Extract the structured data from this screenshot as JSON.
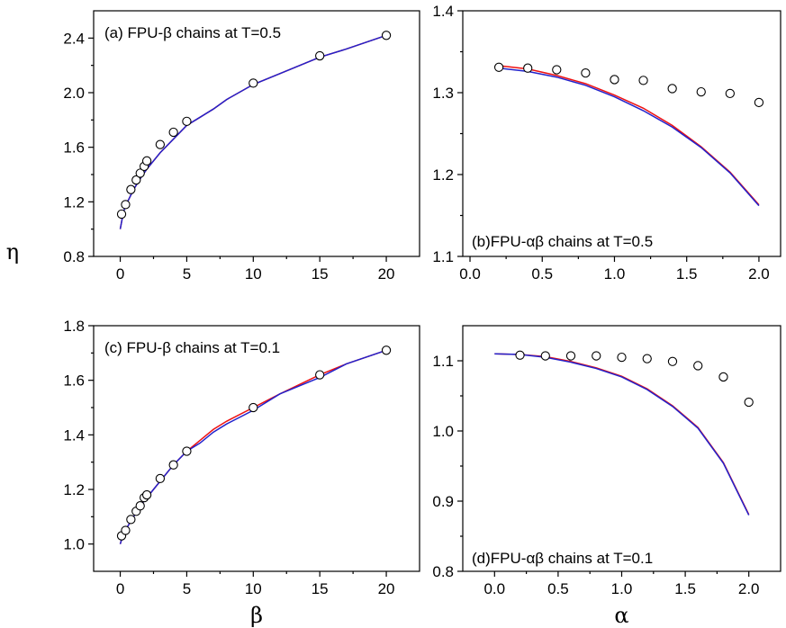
{
  "figure": {
    "shared_ylabel": "η",
    "colors": {
      "red": "#ee1111",
      "blue": "#2222cc",
      "markers": "#000000"
    }
  },
  "chart_data": [
    {
      "id": "a",
      "type": "line",
      "title": "(a) FPU-β chains at T=0.5",
      "xlabel": "",
      "ylabel": "η",
      "xlim": [
        -2,
        22.5
      ],
      "ylim": [
        0.8,
        2.6
      ],
      "xticks": [
        0,
        5,
        10,
        15,
        20
      ],
      "xtick_labels": [
        "0",
        "5",
        "10",
        "15",
        "20"
      ],
      "yticks": [
        0.8,
        1.2,
        1.6,
        2.0,
        2.4
      ],
      "ytick_labels": [
        "0.8",
        "1.2",
        "1.6",
        "2.0",
        "2.4"
      ],
      "series": [
        {
          "style": "line",
          "color": "#ee1111",
          "x": [
            0,
            0.25,
            0.5,
            1,
            1.5,
            2,
            3,
            4,
            5,
            6,
            7,
            8,
            10,
            12,
            15,
            17,
            20
          ],
          "y": [
            1.0,
            1.13,
            1.19,
            1.29,
            1.37,
            1.44,
            1.56,
            1.66,
            1.76,
            1.82,
            1.88,
            1.95,
            2.06,
            2.14,
            2.26,
            2.32,
            2.42
          ]
        },
        {
          "style": "line",
          "color": "#2222cc",
          "x": [
            0,
            0.25,
            0.5,
            1,
            1.5,
            2,
            3,
            4,
            5,
            6,
            7,
            8,
            10,
            12,
            15,
            17,
            20
          ],
          "y": [
            1.0,
            1.13,
            1.19,
            1.29,
            1.37,
            1.44,
            1.56,
            1.66,
            1.76,
            1.82,
            1.88,
            1.95,
            2.06,
            2.14,
            2.26,
            2.32,
            2.42
          ]
        },
        {
          "style": "marker",
          "x": [
            0.1,
            0.4,
            0.8,
            1.2,
            1.5,
            1.8,
            2.0,
            3.0,
            4.0,
            5.0,
            10.0,
            15.0,
            20.0
          ],
          "y": [
            1.11,
            1.18,
            1.29,
            1.36,
            1.41,
            1.46,
            1.5,
            1.62,
            1.71,
            1.79,
            2.07,
            2.27,
            2.42
          ]
        }
      ]
    },
    {
      "id": "b",
      "type": "line",
      "title": "(b)FPU-αβ chains at T=0.5",
      "xlabel": "",
      "ylabel": "η",
      "xlim": [
        -0.05,
        2.15
      ],
      "ylim": [
        1.1,
        1.4
      ],
      "xticks": [
        0.0,
        0.5,
        1.0,
        1.5,
        2.0
      ],
      "xtick_labels": [
        "0.0",
        "0.5",
        "1.0",
        "1.5",
        "2.0"
      ],
      "yticks": [
        1.1,
        1.2,
        1.3,
        1.4
      ],
      "ytick_labels": [
        "1.1",
        "1.2",
        "1.3",
        "1.4"
      ],
      "series": [
        {
          "style": "line",
          "color": "#ee1111",
          "x": [
            0.2,
            0.4,
            0.6,
            0.8,
            1.0,
            1.2,
            1.4,
            1.6,
            1.8,
            2.0
          ],
          "y": [
            1.333,
            1.329,
            1.321,
            1.311,
            1.297,
            1.281,
            1.26,
            1.234,
            1.203,
            1.163
          ]
        },
        {
          "style": "line",
          "color": "#2222cc",
          "x": [
            0.2,
            0.4,
            0.6,
            0.8,
            1.0,
            1.2,
            1.4,
            1.6,
            1.8,
            2.0
          ],
          "y": [
            1.33,
            1.326,
            1.319,
            1.309,
            1.295,
            1.278,
            1.258,
            1.233,
            1.202,
            1.162
          ]
        },
        {
          "style": "marker",
          "x": [
            0.2,
            0.4,
            0.6,
            0.8,
            1.0,
            1.2,
            1.4,
            1.6,
            1.8,
            2.0
          ],
          "y": [
            1.331,
            1.33,
            1.328,
            1.324,
            1.316,
            1.315,
            1.305,
            1.301,
            1.299,
            1.288
          ]
        }
      ]
    },
    {
      "id": "c",
      "type": "line",
      "title": "(c) FPU-β chains at T=0.1",
      "xlabel": "β",
      "ylabel": "η",
      "xlim": [
        -2,
        22.5
      ],
      "ylim": [
        0.9,
        1.8
      ],
      "xticks": [
        0,
        5,
        10,
        15,
        20
      ],
      "xtick_labels": [
        "0",
        "5",
        "10",
        "15",
        "20"
      ],
      "yticks": [
        1.0,
        1.2,
        1.4,
        1.6,
        1.8
      ],
      "ytick_labels": [
        "1.0",
        "1.2",
        "1.4",
        "1.6",
        "1.8"
      ],
      "series": [
        {
          "style": "line",
          "color": "#ee1111",
          "x": [
            0,
            0.25,
            0.5,
            1,
            1.5,
            2,
            3,
            4,
            5,
            6,
            7,
            8,
            10,
            12,
            15,
            17,
            20
          ],
          "y": [
            1.0,
            1.04,
            1.06,
            1.1,
            1.14,
            1.17,
            1.23,
            1.29,
            1.34,
            1.38,
            1.42,
            1.45,
            1.5,
            1.55,
            1.62,
            1.66,
            1.71
          ]
        },
        {
          "style": "line",
          "color": "#2222cc",
          "x": [
            0,
            0.25,
            0.5,
            1,
            1.5,
            2,
            3,
            4,
            5,
            6,
            7,
            8,
            10,
            12,
            15,
            17,
            20
          ],
          "y": [
            1.0,
            1.04,
            1.06,
            1.1,
            1.14,
            1.17,
            1.23,
            1.29,
            1.34,
            1.37,
            1.41,
            1.44,
            1.49,
            1.55,
            1.61,
            1.66,
            1.71
          ]
        },
        {
          "style": "marker",
          "x": [
            0.1,
            0.4,
            0.8,
            1.2,
            1.5,
            1.8,
            2.0,
            3.0,
            4.0,
            5.0,
            10.0,
            15.0,
            20.0
          ],
          "y": [
            1.03,
            1.05,
            1.09,
            1.12,
            1.14,
            1.17,
            1.18,
            1.24,
            1.29,
            1.34,
            1.5,
            1.62,
            1.71
          ]
        }
      ]
    },
    {
      "id": "d",
      "type": "line",
      "title": "(d)FPU-αβ chains at T=0.1",
      "xlabel": "α",
      "ylabel": "η",
      "xlim": [
        -0.25,
        2.25
      ],
      "ylim": [
        0.8,
        1.15
      ],
      "xticks": [
        0.0,
        0.5,
        1.0,
        1.5,
        2.0
      ],
      "xtick_labels": [
        "0.0",
        "0.5",
        "1.0",
        "1.5",
        "2.0"
      ],
      "yticks": [
        0.8,
        0.9,
        1.0,
        1.1
      ],
      "ytick_labels": [
        "0.8",
        "0.9",
        "1.0",
        "1.1"
      ],
      "series": [
        {
          "style": "line",
          "color": "#ee1111",
          "x": [
            0.0,
            0.2,
            0.4,
            0.6,
            0.8,
            1.0,
            1.2,
            1.4,
            1.6,
            1.8,
            2.0
          ],
          "y": [
            1.11,
            1.109,
            1.106,
            1.099,
            1.09,
            1.078,
            1.06,
            1.036,
            1.005,
            0.955,
            0.881
          ]
        },
        {
          "style": "line",
          "color": "#2222cc",
          "x": [
            0.0,
            0.2,
            0.4,
            0.6,
            0.8,
            1.0,
            1.2,
            1.4,
            1.6,
            1.8,
            2.0
          ],
          "y": [
            1.11,
            1.109,
            1.105,
            1.098,
            1.089,
            1.077,
            1.059,
            1.035,
            1.004,
            0.954,
            0.88
          ]
        },
        {
          "style": "marker",
          "x": [
            0.2,
            0.4,
            0.6,
            0.8,
            1.0,
            1.2,
            1.4,
            1.6,
            1.8,
            2.0
          ],
          "y": [
            1.108,
            1.107,
            1.107,
            1.107,
            1.105,
            1.103,
            1.099,
            1.093,
            1.077,
            1.041
          ]
        }
      ]
    }
  ]
}
